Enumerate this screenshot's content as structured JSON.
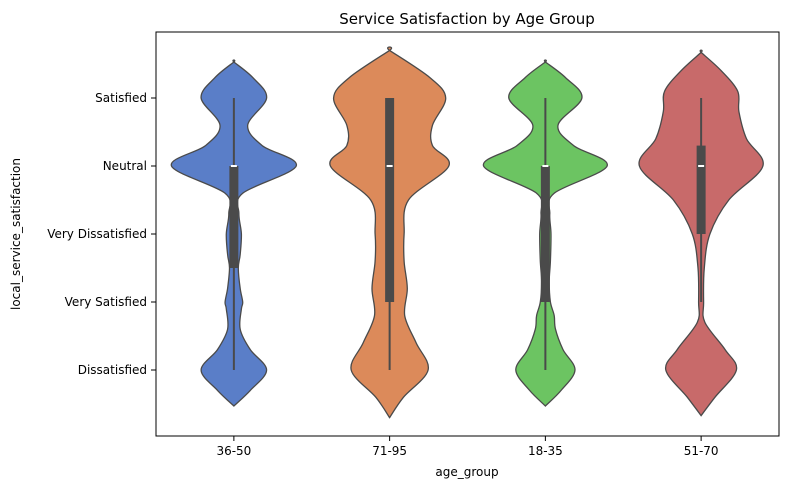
{
  "chart_data": {
    "type": "violin",
    "title": "Service Satisfaction by Age Group",
    "xlabel": "age_group",
    "ylabel": "local_service_satisfaction",
    "categories": [
      "36-50",
      "71-95",
      "18-35",
      "51-70"
    ],
    "y_levels": [
      "Satisfied",
      "Neutral",
      "Very Dissatisfied",
      "Very Satisfied",
      "Dissatisfied"
    ],
    "grid": false,
    "series": [
      {
        "category": "36-50",
        "color": "#5a7ec8",
        "min": 0,
        "q1": 1.5,
        "median": 3,
        "q3": 3,
        "max": 4,
        "extent": [
          -0.53,
          4.53
        ],
        "profile": [
          [
            -0.53,
            0.0
          ],
          [
            -0.3,
            0.26
          ],
          [
            0,
            0.52
          ],
          [
            0.3,
            0.26
          ],
          [
            0.6,
            0.1
          ],
          [
            0.9,
            0.12
          ],
          [
            1.0,
            0.14
          ],
          [
            1.2,
            0.1
          ],
          [
            1.5,
            0.07
          ],
          [
            1.7,
            0.1
          ],
          [
            2.0,
            0.12
          ],
          [
            2.3,
            0.08
          ],
          [
            2.6,
            0.14
          ],
          [
            3.0,
            0.99
          ],
          [
            3.3,
            0.45
          ],
          [
            3.6,
            0.22
          ],
          [
            4.0,
            0.52
          ],
          [
            4.3,
            0.3
          ],
          [
            4.53,
            0.0
          ]
        ]
      },
      {
        "category": "71-95",
        "color": "#dc8a5a",
        "min": 0,
        "q1": 1,
        "median": 3,
        "q3": 4,
        "max": 4,
        "extent": [
          -0.7,
          4.7
        ],
        "profile": [
          [
            -0.7,
            0.0
          ],
          [
            -0.4,
            0.22
          ],
          [
            0,
            0.61
          ],
          [
            0.4,
            0.42
          ],
          [
            0.8,
            0.24
          ],
          [
            1.2,
            0.28
          ],
          [
            1.6,
            0.23
          ],
          [
            2.0,
            0.23
          ],
          [
            2.5,
            0.3
          ],
          [
            3.0,
            0.94
          ],
          [
            3.3,
            0.68
          ],
          [
            3.6,
            0.68
          ],
          [
            4.0,
            0.89
          ],
          [
            4.3,
            0.64
          ],
          [
            4.7,
            0.0
          ]
        ]
      },
      {
        "category": "18-35",
        "color": "#6cc462",
        "min": 0,
        "q1": 1,
        "median": 3,
        "q3": 3,
        "max": 4,
        "extent": [
          -0.53,
          4.53
        ],
        "profile": [
          [
            -0.53,
            0.0
          ],
          [
            -0.3,
            0.25
          ],
          [
            0,
            0.47
          ],
          [
            0.3,
            0.28
          ],
          [
            0.6,
            0.16
          ],
          [
            0.8,
            0.14
          ],
          [
            1.0,
            0.08
          ],
          [
            1.3,
            0.06
          ],
          [
            1.6,
            0.08
          ],
          [
            2.0,
            0.09
          ],
          [
            2.3,
            0.07
          ],
          [
            2.6,
            0.14
          ],
          [
            3.0,
            0.98
          ],
          [
            3.3,
            0.45
          ],
          [
            3.6,
            0.2
          ],
          [
            4.0,
            0.58
          ],
          [
            4.3,
            0.32
          ],
          [
            4.53,
            0.0
          ]
        ]
      },
      {
        "category": "51-70",
        "color": "#c86a6a",
        "min": 1,
        "q1": 2,
        "median": 3,
        "q3": 3.3,
        "max": 4,
        "extent": [
          -0.67,
          4.67
        ],
        "profile": [
          [
            -0.67,
            0.0
          ],
          [
            -0.4,
            0.22
          ],
          [
            0,
            0.56
          ],
          [
            0.3,
            0.38
          ],
          [
            0.7,
            0.06
          ],
          [
            1.0,
            0.04
          ],
          [
            1.5,
            0.05
          ],
          [
            2.0,
            0.14
          ],
          [
            2.5,
            0.44
          ],
          [
            3.0,
            0.98
          ],
          [
            3.4,
            0.72
          ],
          [
            3.8,
            0.6
          ],
          [
            4.1,
            0.58
          ],
          [
            4.4,
            0.32
          ],
          [
            4.67,
            0.0
          ]
        ]
      }
    ]
  }
}
